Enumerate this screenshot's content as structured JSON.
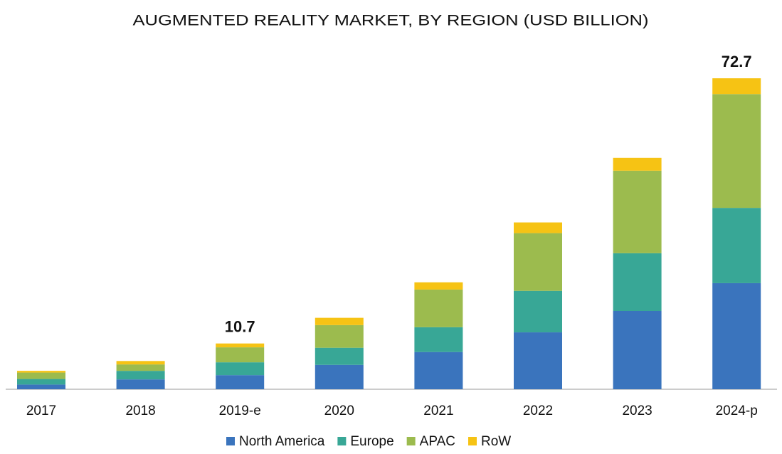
{
  "chart_data": {
    "type": "stacked-bar",
    "title": "AUGMENTED REALITY MARKET, BY REGION (USD BILLION)",
    "categories": [
      "2017",
      "2018",
      "2019-e",
      "2020",
      "2021",
      "2022",
      "2023",
      "2024-p"
    ],
    "series": [
      {
        "name": "North America",
        "color": "#3a74bd",
        "values": [
          1.1,
          2.3,
          3.3,
          5.7,
          8.7,
          13.3,
          18.3,
          24.8
        ]
      },
      {
        "name": "Europe",
        "color": "#38a796",
        "values": [
          1.3,
          2.0,
          3.0,
          4.0,
          5.8,
          9.7,
          13.5,
          17.6
        ]
      },
      {
        "name": "APAC",
        "color": "#9cbb4e",
        "values": [
          1.5,
          1.5,
          3.5,
          5.3,
          8.8,
          13.5,
          19.3,
          26.6
        ]
      },
      {
        "name": "RoW",
        "color": "#f6c314",
        "values": [
          0.4,
          0.8,
          0.9,
          1.7,
          1.7,
          2.5,
          3.0,
          3.7
        ]
      }
    ],
    "annotations": [
      {
        "category": "2019-e",
        "value": 10.7
      },
      {
        "category": "2024-p",
        "value": 72.7
      }
    ],
    "legend": "bottom"
  }
}
